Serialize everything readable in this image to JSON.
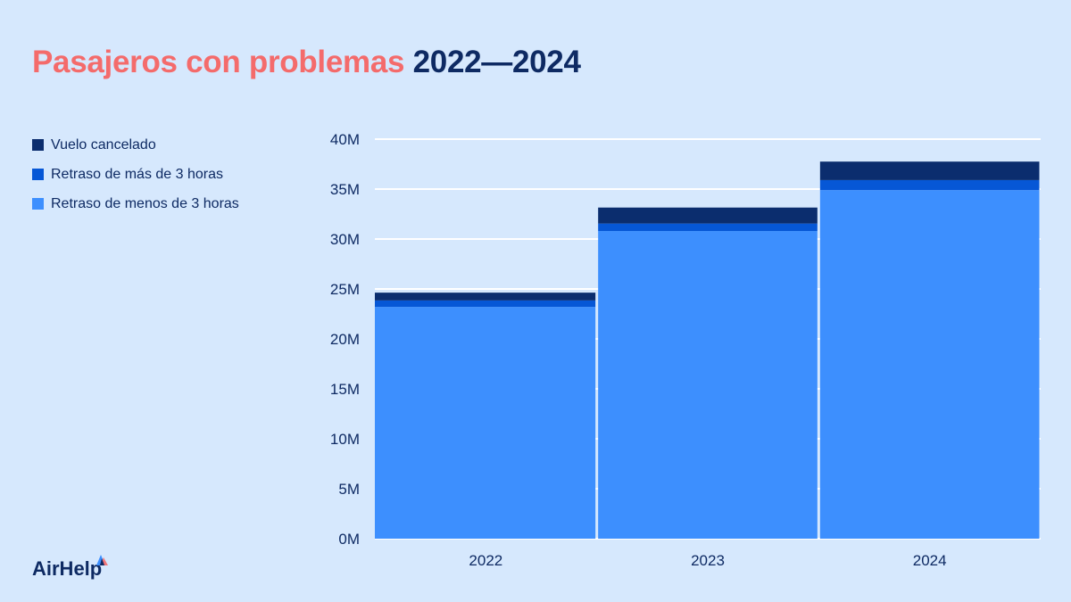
{
  "title": {
    "part1": "Pasajeros con problemas",
    "part2": "2022—2024"
  },
  "colors": {
    "cancelled": "#0b2d6e",
    "over3h": "#0657d6",
    "under3h": "#3d8ffe",
    "title_accent": "#f46b6b",
    "navy": "#0e2a63",
    "background": "#d6e8fd"
  },
  "brand": {
    "name": "AirHelp"
  },
  "chart_data": {
    "type": "bar",
    "stacked": true,
    "title": "Pasajeros con problemas 2022—2024",
    "categories": [
      "2022",
      "2023",
      "2024"
    ],
    "series": [
      {
        "name": "Retraso de menos de 3 horas",
        "values": [
          23.2,
          30.8,
          34.9
        ]
      },
      {
        "name": "Retraso de más de 3 horas",
        "values": [
          0.65,
          0.75,
          1.0
        ]
      },
      {
        "name": "Vuelo cancelado",
        "values": [
          0.78,
          1.6,
          1.85
        ]
      }
    ],
    "legend": [
      "Vuelo cancelado",
      "Retraso de más de 3 horas",
      "Retraso de menos de 3 horas"
    ],
    "yticks": [
      "0M",
      "5M",
      "10M",
      "15M",
      "20M",
      "25M",
      "30M",
      "35M",
      "40M"
    ],
    "ylim": [
      0,
      40
    ],
    "yunit": "M",
    "grid": true,
    "legend_position": "left"
  }
}
